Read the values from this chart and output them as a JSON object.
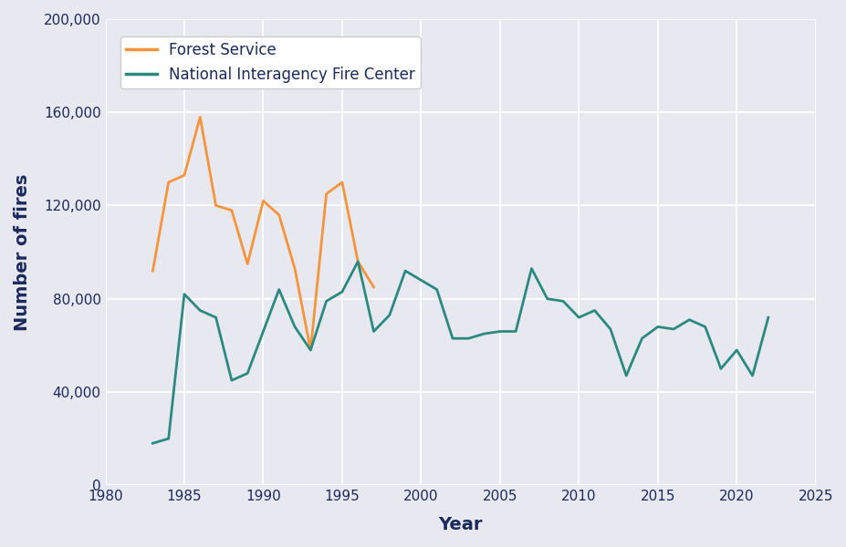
{
  "forest_service_years": [
    1983,
    1984,
    1985,
    1986,
    1987,
    1988,
    1989,
    1990,
    1991,
    1992,
    1993,
    1994,
    1995,
    1996,
    1997
  ],
  "forest_service_values": [
    92000,
    130000,
    133000,
    158000,
    120000,
    118000,
    95000,
    122000,
    116000,
    93000,
    58000,
    125000,
    130000,
    96000,
    85000
  ],
  "nifc_years": [
    1983,
    1984,
    1985,
    1986,
    1987,
    1988,
    1989,
    1990,
    1991,
    1992,
    1993,
    1994,
    1995,
    1996,
    1997,
    1998,
    1999,
    2000,
    2001,
    2002,
    2003,
    2004,
    2005,
    2006,
    2007,
    2008,
    2009,
    2010,
    2011,
    2012,
    2013,
    2014,
    2015,
    2016,
    2017,
    2018,
    2019,
    2020,
    2021,
    2022
  ],
  "nifc_values": [
    18000,
    20000,
    82000,
    75000,
    72000,
    45000,
    48000,
    66000,
    84000,
    68000,
    58000,
    79000,
    83000,
    96000,
    66000,
    73000,
    92000,
    88000,
    84000,
    63000,
    63000,
    65000,
    66000,
    66000,
    93000,
    80000,
    79000,
    72000,
    75000,
    67000,
    47000,
    63000,
    68000,
    67000,
    71000,
    68000,
    50000,
    58000,
    47000,
    72000
  ],
  "forest_service_color": "#f5943a",
  "nifc_color": "#2a8a80",
  "background_color": "#e8e8f0",
  "grid_color": "#ffffff",
  "label_color": "#1a2a5e",
  "xlabel": "Year",
  "ylabel": "Number of fires",
  "xlim": [
    1980,
    2025
  ],
  "ylim": [
    0,
    200000
  ],
  "yticks": [
    0,
    40000,
    80000,
    120000,
    160000,
    200000
  ],
  "xticks": [
    1980,
    1985,
    1990,
    1995,
    2000,
    2005,
    2010,
    2015,
    2020,
    2025
  ],
  "legend_label_fs": "Forest Service",
  "legend_label_nifc": "National Interagency Fire Center",
  "line_width": 2.0,
  "xlabel_fontsize": 14,
  "ylabel_fontsize": 14,
  "tick_labelsize": 11
}
